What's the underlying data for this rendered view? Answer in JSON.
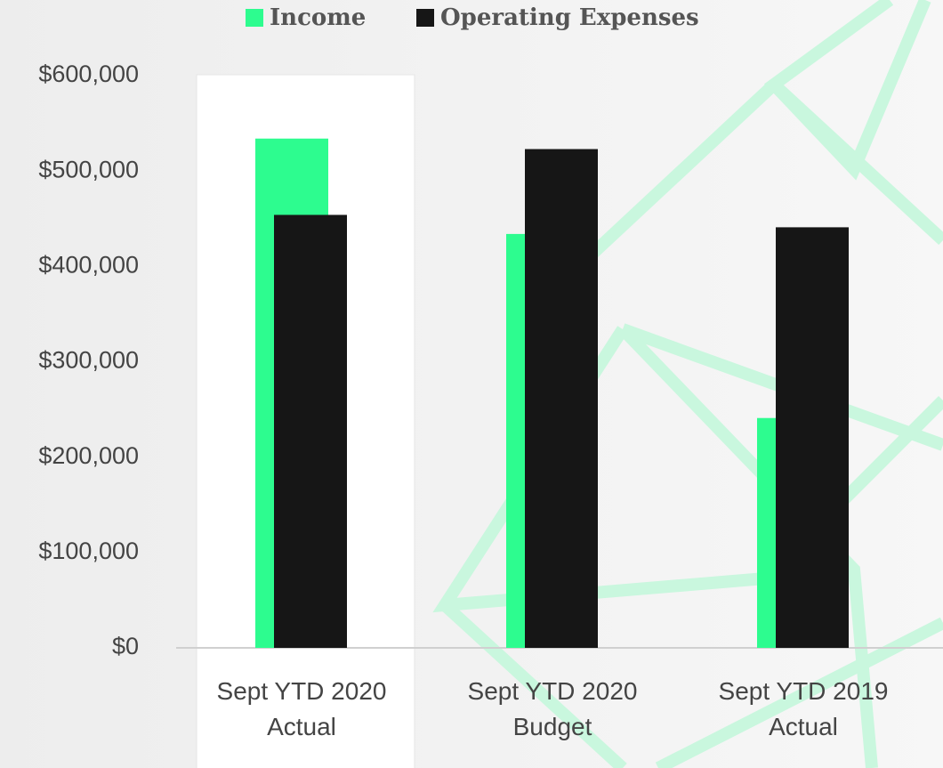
{
  "chart_data": {
    "type": "bar",
    "categories": [
      "Sept YTD 2020 Actual",
      "Sept YTD 2020 Budget",
      "Sept YTD 2019 Actual"
    ],
    "series": [
      {
        "name": "Income",
        "color": "#2dfc8f",
        "values": [
          534000,
          434000,
          241000
        ]
      },
      {
        "name": "Operating Expenses",
        "color": "#161616",
        "values": [
          454000,
          523000,
          441000
        ]
      }
    ],
    "ylim": [
      0,
      600000
    ],
    "yticks": [
      {
        "value": 0,
        "label": "$0"
      },
      {
        "value": 100000,
        "label": "$100,000"
      },
      {
        "value": 200000,
        "label": "$200,000"
      },
      {
        "value": 300000,
        "label": "$300,000"
      },
      {
        "value": 400000,
        "label": "$400,000"
      },
      {
        "value": 500000,
        "label": "$500,000"
      },
      {
        "value": 600000,
        "label": "$600,000"
      }
    ],
    "legend": "top"
  }
}
